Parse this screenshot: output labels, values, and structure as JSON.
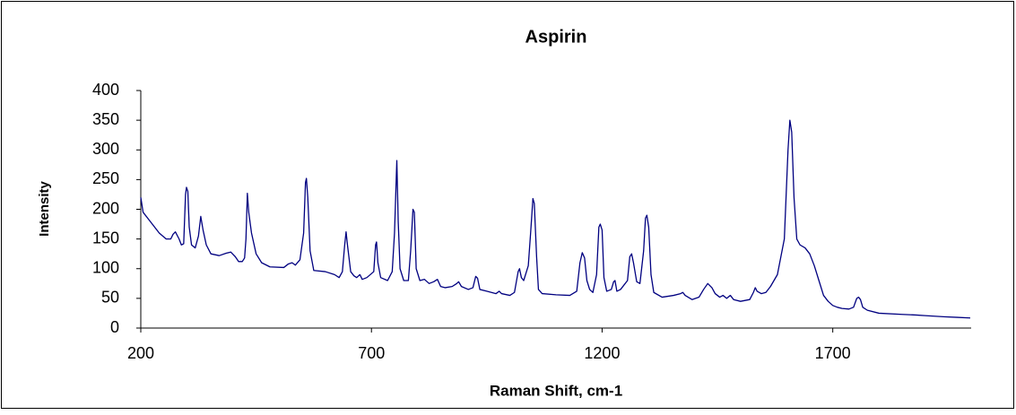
{
  "chart_data": {
    "type": "line",
    "title": "Aspirin",
    "xlabel": "Raman Shift, cm-1",
    "ylabel": "Intensity",
    "xlim": [
      200,
      2000
    ],
    "ylim": [
      0,
      400
    ],
    "xticks": [
      200,
      700,
      1200,
      1700
    ],
    "yticks": [
      0,
      50,
      100,
      150,
      200,
      250,
      300,
      350,
      400
    ],
    "x": [
      200,
      205,
      220,
      240,
      255,
      265,
      270,
      275,
      283,
      288,
      293,
      297,
      299,
      302,
      305,
      310,
      318,
      325,
      330,
      335,
      342,
      352,
      370,
      385,
      395,
      405,
      412,
      420,
      425,
      428,
      431,
      434,
      440,
      450,
      462,
      480,
      510,
      520,
      528,
      535,
      545,
      553,
      557,
      559,
      562,
      567,
      575,
      600,
      620,
      630,
      637,
      642,
      645,
      648,
      655,
      662,
      668,
      675,
      680,
      690,
      705,
      709,
      711,
      714,
      720,
      735,
      745,
      750,
      755,
      758,
      762,
      770,
      780,
      785,
      790,
      793,
      797,
      805,
      815,
      825,
      835,
      843,
      850,
      860,
      875,
      885,
      889,
      895,
      910,
      920,
      926,
      930,
      935,
      950,
      970,
      977,
      982,
      1000,
      1010,
      1018,
      1021,
      1025,
      1030,
      1040,
      1045,
      1050,
      1053,
      1058,
      1062,
      1070,
      1100,
      1130,
      1145,
      1152,
      1157,
      1162,
      1167,
      1173,
      1180,
      1188,
      1193,
      1196,
      1200,
      1204,
      1210,
      1220,
      1225,
      1228,
      1232,
      1240,
      1255,
      1260,
      1264,
      1268,
      1275,
      1282,
      1290,
      1294,
      1297,
      1301,
      1306,
      1312,
      1330,
      1355,
      1370,
      1375,
      1380,
      1395,
      1410,
      1420,
      1429,
      1438,
      1445,
      1455,
      1462,
      1470,
      1478,
      1485,
      1500,
      1520,
      1528,
      1532,
      1536,
      1545,
      1555,
      1565,
      1580,
      1595,
      1603,
      1607,
      1611,
      1616,
      1622,
      1629,
      1640,
      1650,
      1660,
      1670,
      1680,
      1690,
      1700,
      1710,
      1720,
      1735,
      1745,
      1752,
      1756,
      1760,
      1765,
      1775,
      1800,
      1850,
      1880,
      1900,
      1940,
      1970,
      1998
    ],
    "series": [
      {
        "color": "#000080",
        "values": [
          220,
          195,
          180,
          160,
          150,
          150,
          158,
          162,
          150,
          140,
          142,
          225,
          237,
          230,
          170,
          140,
          135,
          155,
          188,
          165,
          140,
          125,
          122,
          126,
          128,
          120,
          112,
          112,
          118,
          150,
          227,
          195,
          160,
          125,
          110,
          103,
          102,
          108,
          110,
          106,
          115,
          160,
          245,
          252,
          220,
          130,
          97,
          95,
          90,
          85,
          95,
          140,
          162,
          140,
          95,
          88,
          85,
          90,
          82,
          85,
          95,
          140,
          145,
          110,
          85,
          80,
          95,
          160,
          282,
          180,
          100,
          80,
          80,
          130,
          200,
          195,
          100,
          80,
          82,
          75,
          78,
          82,
          70,
          68,
          70,
          75,
          78,
          70,
          65,
          68,
          87,
          84,
          65,
          62,
          58,
          62,
          58,
          55,
          60,
          95,
          100,
          85,
          80,
          105,
          160,
          218,
          210,
          120,
          65,
          58,
          56,
          55,
          62,
          110,
          127,
          118,
          80,
          65,
          60,
          90,
          170,
          175,
          165,
          85,
          62,
          65,
          78,
          80,
          62,
          65,
          80,
          120,
          125,
          110,
          78,
          75,
          130,
          185,
          190,
          170,
          90,
          60,
          52,
          55,
          58,
          60,
          55,
          48,
          52,
          65,
          75,
          68,
          58,
          52,
          55,
          50,
          55,
          48,
          45,
          48,
          60,
          68,
          62,
          58,
          60,
          70,
          90,
          150,
          300,
          350,
          330,
          220,
          150,
          140,
          135,
          125,
          105,
          80,
          55,
          45,
          38,
          35,
          33,
          32,
          35,
          50,
          52,
          48,
          35,
          30,
          25,
          23,
          22,
          21,
          19,
          18,
          17
        ]
      }
    ]
  }
}
